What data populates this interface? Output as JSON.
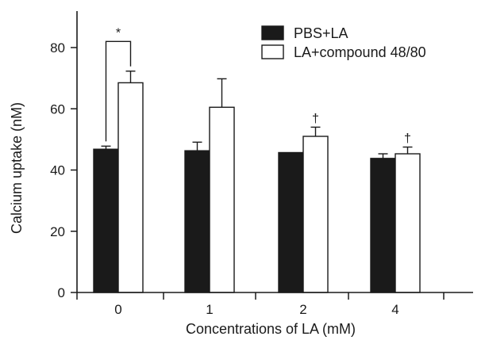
{
  "chart_data": {
    "type": "bar",
    "xlabel": "Concentrations of LA (mM)",
    "ylabel": "Calcium uptake (nM)",
    "ylim": [
      0,
      90
    ],
    "yticks": [
      0,
      20,
      40,
      60,
      80
    ],
    "categories": [
      "0",
      "1",
      "2",
      "4"
    ],
    "series": [
      {
        "name": "PBS+LA",
        "color": "#1a1a1a",
        "values": [
          46.8,
          46.3,
          45.7,
          43.8
        ],
        "errors": [
          1.0,
          2.8,
          0.0,
          1.5
        ]
      },
      {
        "name": "LA+compound 48/80",
        "color": "#ffffff",
        "values": [
          68.5,
          60.5,
          51.0,
          45.3
        ],
        "errors": [
          3.8,
          9.3,
          3.0,
          2.2
        ]
      }
    ],
    "legend": {
      "position": "top-right"
    },
    "annotations": [
      {
        "text": "*",
        "category": "0"
      },
      {
        "text": "†",
        "category": "2"
      },
      {
        "text": "†",
        "category": "4"
      }
    ],
    "grid": false
  }
}
